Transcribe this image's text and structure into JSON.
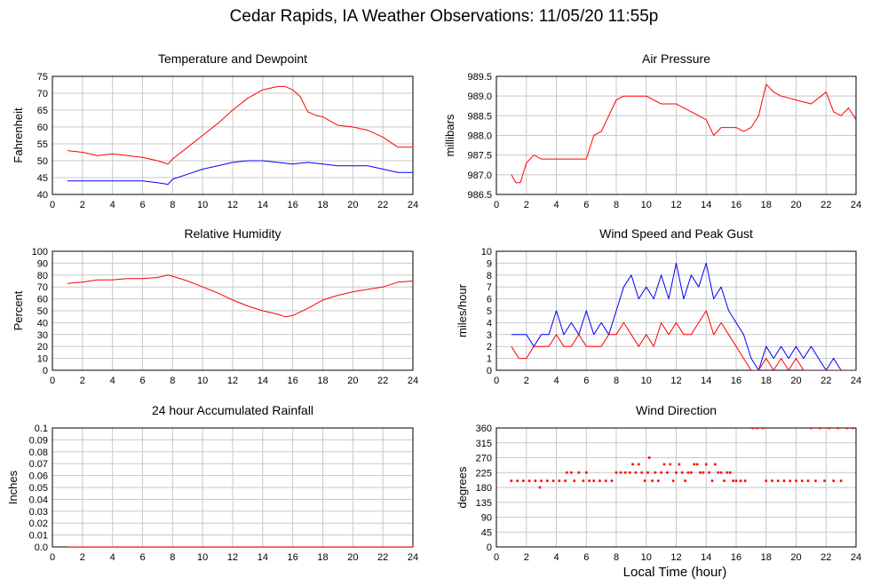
{
  "title": "Cedar Rapids, IA Weather Observations: 11/05/20 11:55p",
  "xlabel": "Local Time (hour)",
  "colors": {
    "primary": "#ff0000",
    "secondary": "#0000ff",
    "grid": "#c8c8c8",
    "frame": "#000000"
  },
  "chart_data": [
    {
      "id": "temp",
      "type": "line",
      "title": "Temperature and Dewpoint",
      "ylabel": "Fahrenheit",
      "xlim": [
        0,
        24
      ],
      "ylim": [
        40,
        75
      ],
      "xticks": [
        2,
        4,
        6,
        8,
        10,
        12,
        14,
        16,
        18,
        20,
        22,
        24
      ],
      "yticks": [
        40,
        45,
        50,
        55,
        60,
        65,
        70,
        75
      ],
      "grid": true,
      "series": [
        {
          "color": "#ff0000",
          "x": [
            1,
            2,
            3,
            4,
            5,
            6,
            7,
            7.7,
            8,
            9,
            10,
            11,
            12,
            13,
            14,
            15,
            15.5,
            16,
            16.5,
            17,
            17.5,
            18,
            19,
            20,
            21,
            22,
            23,
            24
          ],
          "y": [
            53,
            52.5,
            51.5,
            52,
            51.5,
            51,
            50,
            49,
            50.5,
            54,
            57.5,
            61,
            65,
            68.5,
            71,
            72,
            72,
            71,
            69,
            64.5,
            63.5,
            63,
            60.5,
            60,
            59,
            57,
            54,
            54
          ]
        },
        {
          "color": "#0000ff",
          "x": [
            1,
            2,
            3,
            4,
            5,
            6,
            7,
            7.7,
            8,
            9,
            10,
            11,
            12,
            13,
            14,
            15,
            16,
            17,
            18,
            19,
            20,
            21,
            22,
            23,
            24
          ],
          "y": [
            44,
            44,
            44,
            44,
            44,
            44,
            43.5,
            43,
            44.5,
            46,
            47.5,
            48.5,
            49.5,
            50,
            50,
            49.5,
            49,
            49.5,
            49,
            48.5,
            48.5,
            48.5,
            47.5,
            46.5,
            46.5
          ]
        }
      ]
    },
    {
      "id": "pressure",
      "type": "line",
      "title": "Air Pressure",
      "ylabel": "millibars",
      "xlim": [
        0,
        24
      ],
      "ylim": [
        986.5,
        989.5
      ],
      "xticks": [
        2,
        4,
        6,
        8,
        10,
        12,
        14,
        16,
        18,
        20,
        22,
        24
      ],
      "yticks": [
        986.5,
        987.0,
        987.5,
        988.0,
        988.5,
        989.0,
        989.5
      ],
      "ytick_labels": [
        "986.5",
        "987.0",
        "987.5",
        "988.0",
        "988.5",
        "989.0",
        "989.5"
      ],
      "grid": true,
      "series": [
        {
          "color": "#ff0000",
          "x": [
            1,
            1.3,
            1.6,
            2,
            2.5,
            3,
            3.5,
            4,
            5,
            6,
            6.5,
            7,
            7.5,
            8,
            8.5,
            9,
            10,
            11,
            12,
            13,
            14,
            14.5,
            15,
            16,
            16.5,
            17,
            17.5,
            18,
            18.5,
            19,
            20,
            21,
            22,
            22.5,
            23,
            23.5,
            24
          ],
          "y": [
            987.0,
            986.8,
            986.8,
            987.3,
            987.5,
            987.4,
            987.4,
            987.4,
            987.4,
            987.4,
            988.0,
            988.1,
            988.5,
            988.9,
            989.0,
            989.0,
            989.0,
            988.8,
            988.8,
            988.6,
            988.4,
            988.0,
            988.2,
            988.2,
            988.1,
            988.2,
            988.5,
            989.3,
            989.1,
            989.0,
            988.9,
            988.8,
            989.1,
            988.6,
            988.5,
            988.7,
            988.4
          ]
        }
      ]
    },
    {
      "id": "humidity",
      "type": "line",
      "title": "Relative Humidity",
      "ylabel": "Percent",
      "xlim": [
        0,
        24
      ],
      "ylim": [
        0,
        100
      ],
      "xticks": [
        2,
        4,
        6,
        8,
        10,
        12,
        14,
        16,
        18,
        20,
        22,
        24
      ],
      "yticks": [
        0,
        10,
        20,
        30,
        40,
        50,
        60,
        70,
        80,
        90,
        100
      ],
      "grid": true,
      "series": [
        {
          "color": "#ff0000",
          "x": [
            1,
            2,
            3,
            4,
            5,
            6,
            7,
            7.7,
            8,
            9,
            10,
            11,
            12,
            13,
            14,
            15,
            15.5,
            16,
            17,
            18,
            19,
            20,
            21,
            22,
            23,
            24
          ],
          "y": [
            73,
            74,
            76,
            76,
            77,
            77,
            78,
            80,
            79,
            75,
            70,
            65,
            59,
            54,
            50,
            47,
            45,
            46,
            52,
            59,
            63,
            66,
            68,
            70,
            74,
            75
          ]
        }
      ]
    },
    {
      "id": "wind",
      "type": "line",
      "title": "Wind Speed and Peak Gust",
      "ylabel": "miles/hour",
      "xlim": [
        0,
        24
      ],
      "ylim": [
        0,
        10
      ],
      "xticks": [
        2,
        4,
        6,
        8,
        10,
        12,
        14,
        16,
        18,
        20,
        22,
        24
      ],
      "yticks": [
        0,
        1,
        2,
        3,
        4,
        5,
        6,
        7,
        8,
        9,
        10
      ],
      "grid": true,
      "series": [
        {
          "color": "#0000ff",
          "x": [
            1,
            2,
            2.5,
            3,
            3.5,
            4,
            4.5,
            5,
            5.5,
            6,
            6.5,
            7,
            7.5,
            8,
            8.5,
            9,
            9.5,
            10,
            10.5,
            11,
            11.5,
            12,
            12.5,
            13,
            13.5,
            14,
            14.5,
            15,
            15.5,
            16,
            16.5,
            17,
            17.5,
            18,
            18.5,
            19,
            19.5,
            20,
            20.5,
            21,
            21.5,
            22,
            22.5,
            23,
            24
          ],
          "y": [
            3,
            3,
            2,
            3,
            3,
            5,
            3,
            4,
            3,
            5,
            3,
            4,
            3,
            5,
            7,
            8,
            6,
            7,
            6,
            8,
            6,
            9,
            6,
            8,
            7,
            9,
            6,
            7,
            5,
            4,
            3,
            1,
            0,
            2,
            1,
            2,
            1,
            2,
            1,
            2,
            1,
            0,
            1,
            0,
            0
          ]
        },
        {
          "color": "#ff0000",
          "x": [
            1,
            1.5,
            2,
            2.5,
            3,
            3.5,
            4,
            4.5,
            5,
            5.5,
            6,
            6.5,
            7,
            7.5,
            8,
            8.5,
            9,
            9.5,
            10,
            10.5,
            11,
            11.5,
            12,
            12.5,
            13,
            13.5,
            14,
            14.5,
            15,
            15.5,
            16,
            16.5,
            17,
            17.5,
            18,
            18.5,
            19,
            19.5,
            20,
            20.5,
            21,
            22,
            23,
            24
          ],
          "y": [
            2,
            1,
            1,
            2,
            2,
            2,
            3,
            2,
            2,
            3,
            2,
            2,
            2,
            3,
            3,
            4,
            3,
            2,
            3,
            2,
            4,
            3,
            4,
            3,
            3,
            4,
            5,
            3,
            4,
            3,
            2,
            1,
            0,
            0,
            1,
            0,
            1,
            0,
            1,
            0,
            0,
            0,
            0,
            0
          ]
        }
      ]
    },
    {
      "id": "rain",
      "type": "line",
      "title": "24 hour Accumulated Rainfall",
      "ylabel": "Inches",
      "xlim": [
        0,
        24
      ],
      "ylim": [
        0,
        0.1
      ],
      "xticks": [
        2,
        4,
        6,
        8,
        10,
        12,
        14,
        16,
        18,
        20,
        22,
        24
      ],
      "yticks": [
        0,
        0.01,
        0.02,
        0.03,
        0.04,
        0.05,
        0.06,
        0.07,
        0.08,
        0.09,
        0.1
      ],
      "ytick_labels": [
        "0.0",
        "0.01",
        "0.02",
        "0.03",
        "0.04",
        "0.05",
        "0.06",
        "0.07",
        "0.08",
        "0.09",
        "0.1"
      ],
      "grid": true,
      "series": [
        {
          "color": "#ff0000",
          "x": [
            1,
            24
          ],
          "y": [
            0,
            0
          ]
        }
      ]
    },
    {
      "id": "direction",
      "type": "scatter",
      "title": "Wind Direction",
      "ylabel": "degrees",
      "xlim": [
        0,
        24
      ],
      "ylim": [
        0,
        360
      ],
      "xticks": [
        2,
        4,
        6,
        8,
        10,
        12,
        14,
        16,
        18,
        20,
        22,
        24
      ],
      "yticks": [
        0,
        45,
        90,
        135,
        180,
        225,
        270,
        315,
        360
      ],
      "grid": true,
      "series": [
        {
          "color": "#ff0000",
          "x": [
            1,
            1.4,
            1.8,
            2.2,
            2.6,
            3,
            2.9,
            3.4,
            3.8,
            4.2,
            4.6,
            4.7,
            5,
            5.2,
            5.5,
            5.8,
            6,
            6.2,
            6.5,
            6.9,
            7.3,
            7.7,
            8,
            8.3,
            8.6,
            8.9,
            9.1,
            9.3,
            9.5,
            9.7,
            9.9,
            10.1,
            10.2,
            10.4,
            10.6,
            10.8,
            11,
            11.2,
            11.4,
            11.6,
            11.8,
            12,
            12.2,
            12.4,
            12.6,
            12.8,
            13,
            13.2,
            13.4,
            13.6,
            13.8,
            14,
            14.2,
            14.4,
            14.6,
            14.8,
            15,
            15.2,
            15.4,
            15.6,
            15.8,
            16,
            16.3,
            16.6,
            17.1,
            17.4,
            17.8,
            18,
            18.4,
            18.8,
            19.2,
            19.6,
            20,
            20.4,
            20.8,
            21,
            21.3,
            21.6,
            21.9,
            22.2,
            22.5,
            22.8,
            23,
            23.4,
            23.8
          ],
          "y": [
            200,
            200,
            200,
            200,
            200,
            200,
            180,
            200,
            200,
            200,
            200,
            225,
            225,
            200,
            225,
            200,
            225,
            200,
            200,
            200,
            200,
            200,
            225,
            225,
            225,
            225,
            250,
            225,
            250,
            225,
            200,
            225,
            270,
            200,
            225,
            200,
            225,
            250,
            225,
            250,
            200,
            225,
            250,
            225,
            200,
            225,
            225,
            250,
            250,
            225,
            225,
            250,
            225,
            200,
            250,
            225,
            225,
            200,
            225,
            225,
            200,
            200,
            200,
            200,
            360,
            360,
            360,
            200,
            200,
            200,
            200,
            200,
            200,
            200,
            200,
            360,
            200,
            360,
            200,
            360,
            200,
            360,
            200,
            360,
            360
          ]
        }
      ]
    }
  ]
}
